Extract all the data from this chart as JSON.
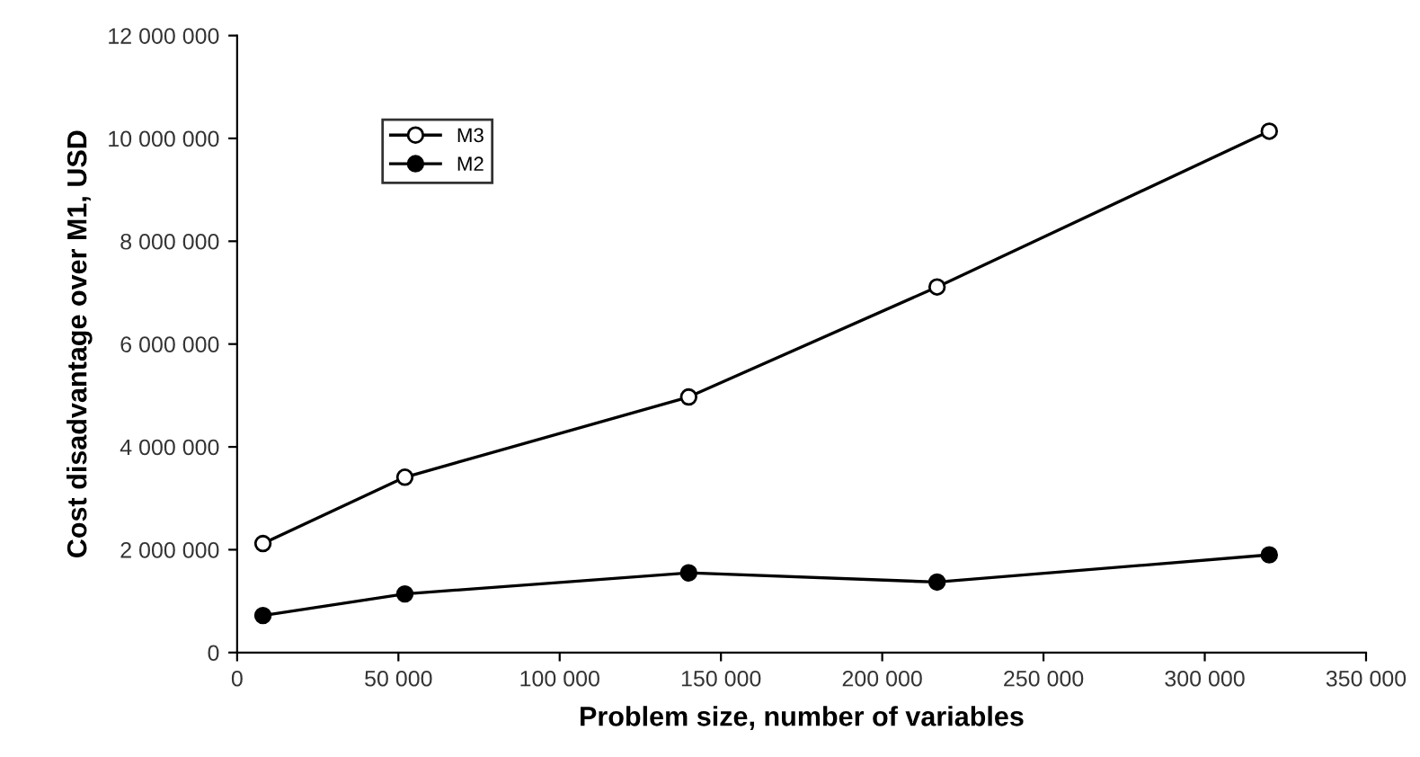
{
  "chart_data": {
    "type": "line",
    "xlabel": "Problem size, number of variables",
    "ylabel": "Cost disadvantage over M1, USD",
    "series": [
      {
        "name": "M3",
        "color": "#000000",
        "marker": "circle",
        "x": [
          8000,
          52000,
          140000,
          217000,
          320000
        ],
        "values": [
          2120000,
          3410000,
          4970000,
          7110000,
          10140000
        ]
      },
      {
        "name": "M2",
        "color": "#000000",
        "marker": "circle",
        "x": [
          8000,
          52000,
          140000,
          217000,
          320000
        ],
        "values": [
          720000,
          1140000,
          1550000,
          1370000,
          1900000
        ]
      }
    ],
    "xlim": [
      0,
      350000
    ],
    "xticks": [
      0,
      {
        "value": 50000,
        "label": "50 000"
      },
      {
        "value": 100000,
        "label": "100 000"
      },
      {
        "value": 150000,
        "label": "150 000"
      },
      {
        "value": 200000,
        "label": "200 000"
      },
      {
        "value": 250000,
        "label": "250 000"
      },
      {
        "value": 300000,
        "label": "300 000"
      },
      {
        "value": 350000,
        "label": "350 000"
      }
    ],
    "ylim": [
      0,
      12000000
    ],
    "yticks": [
      0,
      {
        "value": 2000000,
        "label": "2 000 000"
      },
      {
        "value": 4000000,
        "label": "4 000 000"
      },
      {
        "value": 6000000,
        "label": "6 000 000"
      },
      {
        "value": 8000000,
        "label": "8 000 000"
      },
      {
        "value": 10000000,
        "label": "10 000 000"
      },
      {
        "value": 12000000,
        "label": "12 000 000"
      }
    ],
    "grid": false,
    "legend": "top left",
    "line_style": "solid"
  }
}
